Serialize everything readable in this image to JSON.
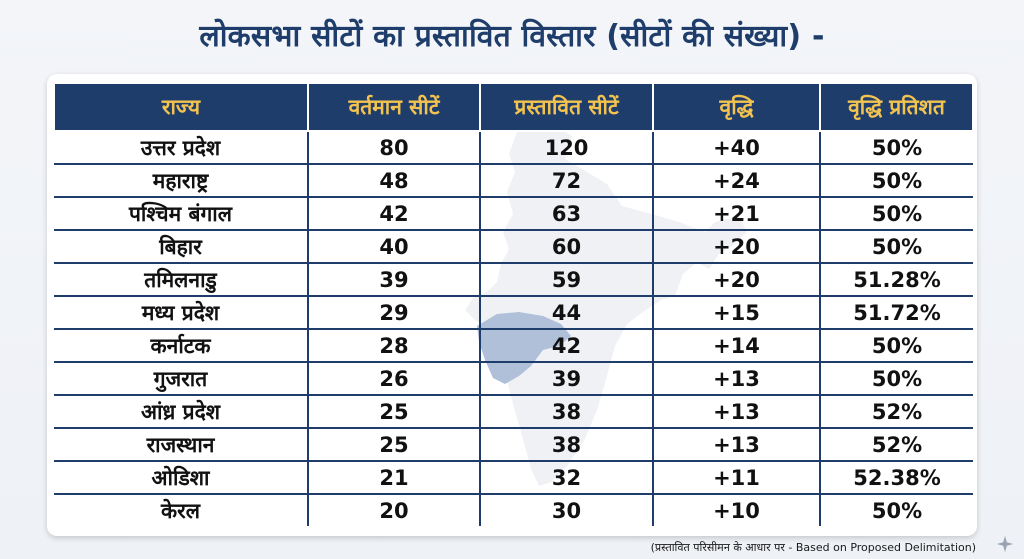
{
  "title": "लोकसभा सीटों का प्रस्तावित विस्तार (सीटों की संख्या) -",
  "table": {
    "headers": [
      "राज्य",
      "वर्तमान सीटें",
      "प्रस्तावित सीटें",
      "वृद्धि",
      "वृद्धि प्रतिशत"
    ],
    "rows": [
      [
        "उत्तर प्रदेश",
        "80",
        "120",
        "+40",
        "50%"
      ],
      [
        "महाराष्ट्र",
        "48",
        "72",
        "+24",
        "50%"
      ],
      [
        "पश्चिम बंगाल",
        "42",
        "63",
        "+21",
        "50%"
      ],
      [
        "बिहार",
        "40",
        "60",
        "+20",
        "50%"
      ],
      [
        "तमिलनाडु",
        "39",
        "59",
        "+20",
        "51.28%"
      ],
      [
        "मध्य प्रदेश",
        "29",
        "44",
        "+15",
        "51.72%"
      ],
      [
        "कर्नाटक",
        "28",
        "42",
        "+14",
        "50%"
      ],
      [
        "गुजरात",
        "26",
        "39",
        "+13",
        "50%"
      ],
      [
        "आंध्र प्रदेश",
        "25",
        "38",
        "+13",
        "52%"
      ],
      [
        "राजस्थान",
        "25",
        "38",
        "+13",
        "52%"
      ],
      [
        "ओडिशा",
        "21",
        "32",
        "+11",
        "52.38%"
      ],
      [
        "केरल",
        "20",
        "30",
        "+10",
        "50%"
      ]
    ]
  },
  "footnote": "(प्रस्तावित परिसीमन के आधार पर - Based on Proposed Delimitation)",
  "colors": {
    "header_bg": "#1f3d6b",
    "header_text": "#f3c350",
    "title_text": "#1f3d6b",
    "map_fill": "#dde1e8",
    "map_highlight": "#4f73a8"
  },
  "icons": [
    "india-map-watermark",
    "sparkle-icon"
  ]
}
